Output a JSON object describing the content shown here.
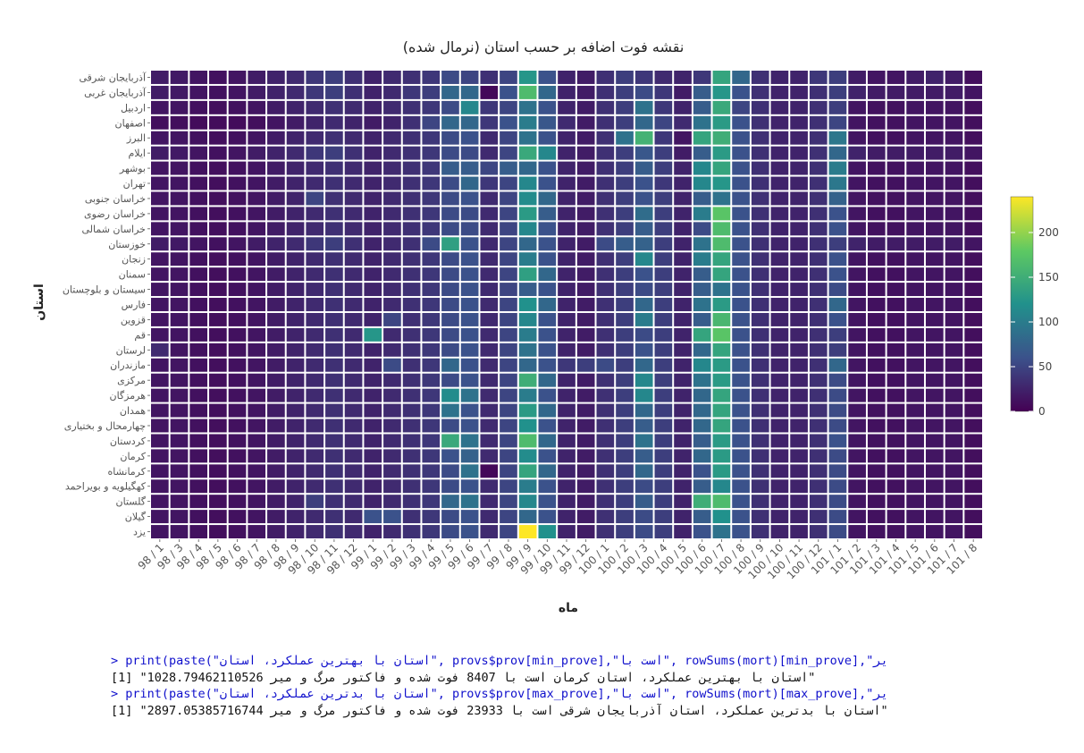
{
  "chart_data": {
    "type": "heatmap",
    "title": "نقشه فوت اضافه بر حسب استان (نرمال شده)",
    "xlabel": "ماه",
    "ylabel": "استان",
    "x": [
      "98 / 1",
      "98 / 3",
      "98 / 4",
      "98 / 5",
      "98 / 6",
      "98 / 7",
      "98 / 8",
      "98 / 9",
      "98 / 10",
      "98 / 11",
      "98 / 12",
      "99 / 1",
      "99 / 2",
      "99 / 3",
      "99 / 4",
      "99 / 5",
      "99 / 6",
      "99 / 7",
      "99 / 8",
      "99 / 9",
      "99 / 10",
      "99 / 11",
      "99 / 12",
      "100 / 1",
      "100 / 2",
      "100 / 3",
      "100 / 4",
      "100 / 5",
      "100 / 6",
      "100 / 7",
      "100 / 8",
      "100 / 9",
      "100 / 10",
      "100 / 11",
      "100 / 12",
      "101 / 1",
      "101 / 2",
      "101 / 3",
      "101 / 4",
      "101 / 5",
      "101 / 6",
      "101 / 7",
      "101 / 8"
    ],
    "y": [
      "آذربایجان شرقی",
      "آذربایجان غربی",
      "اردبیل",
      "اصفهان",
      "البرز",
      "ایلام",
      "بوشهر",
      "تهران",
      "خراسان جنوبی",
      "خراسان رضوی",
      "خراسان شمالی",
      "خوزستان",
      "زنجان",
      "سمنان",
      "سیستان و بلوچستان",
      "فارس",
      "قزوین",
      "قم",
      "لرستان",
      "مازندران",
      "مرکزی",
      "هرمزگان",
      "همدان",
      "چهارمحال و بختیاری",
      "کردستان",
      "کرمان",
      "کرمانشاه",
      "کهگیلویه و بویراحمد",
      "گلستان",
      "گیلان",
      "یزد"
    ],
    "values": [
      [
        20,
        18,
        15,
        12,
        15,
        20,
        25,
        30,
        40,
        45,
        35,
        25,
        30,
        35,
        40,
        55,
        50,
        35,
        50,
        125,
        60,
        25,
        20,
        35,
        45,
        40,
        30,
        25,
        40,
        140,
        80,
        35,
        25,
        25,
        40,
        45,
        20,
        15,
        15,
        20,
        25,
        20,
        10
      ],
      [
        20,
        18,
        15,
        12,
        15,
        20,
        25,
        30,
        40,
        45,
        35,
        25,
        30,
        40,
        45,
        80,
        80,
        5,
        60,
        165,
        80,
        25,
        20,
        35,
        45,
        55,
        40,
        20,
        70,
        125,
        60,
        35,
        25,
        25,
        35,
        45,
        25,
        20,
        20,
        20,
        20,
        20,
        15
      ],
      [
        15,
        15,
        12,
        10,
        12,
        15,
        20,
        25,
        30,
        35,
        30,
        25,
        30,
        35,
        40,
        55,
        110,
        40,
        50,
        90,
        60,
        25,
        20,
        35,
        45,
        90,
        40,
        25,
        70,
        145,
        50,
        35,
        25,
        25,
        35,
        45,
        15,
        12,
        12,
        15,
        15,
        15,
        10
      ],
      [
        10,
        10,
        8,
        8,
        8,
        10,
        15,
        20,
        25,
        30,
        25,
        20,
        25,
        35,
        50,
        80,
        80,
        40,
        60,
        100,
        65,
        30,
        20,
        35,
        45,
        80,
        50,
        30,
        90,
        130,
        60,
        35,
        25,
        25,
        35,
        50,
        15,
        12,
        12,
        15,
        15,
        15,
        10
      ],
      [
        15,
        15,
        12,
        10,
        12,
        15,
        20,
        25,
        30,
        35,
        30,
        25,
        30,
        35,
        40,
        55,
        60,
        30,
        50,
        90,
        60,
        25,
        20,
        35,
        90,
        155,
        40,
        15,
        140,
        150,
        60,
        35,
        25,
        25,
        35,
        95,
        15,
        12,
        12,
        15,
        15,
        15,
        10
      ],
      [
        20,
        18,
        15,
        12,
        15,
        20,
        25,
        30,
        40,
        45,
        35,
        25,
        30,
        35,
        40,
        55,
        55,
        30,
        50,
        145,
        110,
        25,
        20,
        35,
        45,
        65,
        45,
        20,
        70,
        130,
        60,
        35,
        25,
        25,
        35,
        80,
        25,
        20,
        20,
        20,
        20,
        20,
        15
      ],
      [
        15,
        15,
        12,
        10,
        12,
        15,
        20,
        25,
        30,
        35,
        30,
        25,
        30,
        35,
        40,
        70,
        70,
        50,
        70,
        80,
        60,
        25,
        20,
        35,
        45,
        70,
        45,
        25,
        110,
        140,
        60,
        35,
        25,
        25,
        35,
        100,
        15,
        12,
        12,
        15,
        15,
        15,
        10
      ],
      [
        15,
        15,
        12,
        10,
        12,
        15,
        20,
        25,
        30,
        35,
        30,
        25,
        30,
        35,
        40,
        55,
        80,
        40,
        50,
        110,
        60,
        25,
        20,
        35,
        45,
        60,
        40,
        25,
        110,
        125,
        60,
        35,
        25,
        25,
        35,
        95,
        15,
        12,
        12,
        15,
        15,
        15,
        10
      ],
      [
        15,
        15,
        12,
        10,
        12,
        15,
        20,
        25,
        50,
        35,
        30,
        25,
        30,
        35,
        40,
        55,
        60,
        30,
        50,
        115,
        80,
        25,
        20,
        35,
        45,
        60,
        45,
        25,
        70,
        90,
        60,
        35,
        25,
        25,
        35,
        75,
        15,
        12,
        12,
        15,
        15,
        15,
        10
      ],
      [
        15,
        15,
        12,
        10,
        12,
        15,
        20,
        25,
        30,
        35,
        30,
        25,
        30,
        35,
        40,
        55,
        55,
        30,
        50,
        130,
        70,
        25,
        20,
        35,
        45,
        85,
        45,
        25,
        100,
        175,
        60,
        35,
        25,
        25,
        35,
        60,
        15,
        12,
        12,
        15,
        15,
        15,
        10
      ],
      [
        15,
        15,
        12,
        10,
        12,
        15,
        20,
        25,
        30,
        35,
        30,
        25,
        30,
        35,
        40,
        55,
        55,
        30,
        50,
        110,
        60,
        25,
        20,
        35,
        45,
        70,
        45,
        25,
        55,
        165,
        60,
        35,
        25,
        25,
        35,
        60,
        15,
        12,
        12,
        15,
        15,
        15,
        10
      ],
      [
        20,
        18,
        15,
        12,
        15,
        20,
        25,
        30,
        40,
        45,
        35,
        25,
        30,
        35,
        55,
        135,
        60,
        30,
        50,
        80,
        60,
        25,
        20,
        55,
        70,
        75,
        45,
        25,
        90,
        165,
        60,
        35,
        25,
        25,
        35,
        45,
        25,
        20,
        20,
        20,
        20,
        20,
        15
      ],
      [
        15,
        15,
        12,
        10,
        12,
        15,
        20,
        25,
        30,
        35,
        30,
        25,
        30,
        35,
        40,
        55,
        60,
        30,
        50,
        100,
        60,
        25,
        20,
        35,
        45,
        110,
        45,
        25,
        100,
        140,
        60,
        35,
        25,
        25,
        35,
        60,
        15,
        12,
        12,
        15,
        15,
        15,
        10
      ],
      [
        15,
        15,
        12,
        10,
        12,
        15,
        20,
        25,
        30,
        35,
        30,
        25,
        30,
        35,
        40,
        55,
        60,
        30,
        50,
        135,
        80,
        25,
        20,
        35,
        45,
        60,
        45,
        25,
        70,
        140,
        60,
        35,
        25,
        25,
        35,
        60,
        15,
        12,
        12,
        15,
        15,
        15,
        10
      ],
      [
        15,
        15,
        12,
        10,
        12,
        15,
        20,
        25,
        30,
        35,
        30,
        25,
        30,
        35,
        40,
        55,
        60,
        30,
        50,
        70,
        60,
        25,
        20,
        35,
        45,
        55,
        45,
        25,
        70,
        90,
        60,
        35,
        25,
        25,
        35,
        55,
        15,
        12,
        12,
        15,
        15,
        15,
        10
      ],
      [
        15,
        15,
        12,
        10,
        12,
        15,
        20,
        25,
        30,
        35,
        30,
        25,
        30,
        35,
        40,
        55,
        60,
        30,
        50,
        120,
        80,
        25,
        20,
        35,
        45,
        80,
        45,
        25,
        90,
        130,
        60,
        35,
        25,
        25,
        35,
        80,
        15,
        12,
        12,
        15,
        15,
        15,
        10
      ],
      [
        15,
        15,
        12,
        10,
        12,
        15,
        20,
        25,
        30,
        35,
        30,
        25,
        50,
        35,
        40,
        55,
        60,
        30,
        50,
        110,
        60,
        25,
        20,
        35,
        45,
        100,
        45,
        25,
        70,
        160,
        60,
        35,
        25,
        25,
        35,
        60,
        15,
        12,
        12,
        15,
        15,
        15,
        10
      ],
      [
        15,
        15,
        12,
        10,
        12,
        15,
        20,
        25,
        30,
        35,
        30,
        125,
        30,
        35,
        40,
        55,
        60,
        30,
        50,
        100,
        60,
        25,
        20,
        35,
        45,
        55,
        45,
        25,
        140,
        175,
        60,
        35,
        25,
        25,
        35,
        45,
        15,
        12,
        12,
        15,
        15,
        15,
        10
      ],
      [
        30,
        15,
        12,
        10,
        12,
        15,
        20,
        25,
        30,
        35,
        30,
        25,
        30,
        35,
        40,
        55,
        60,
        30,
        50,
        90,
        60,
        25,
        20,
        35,
        45,
        60,
        45,
        25,
        80,
        140,
        60,
        35,
        25,
        25,
        35,
        45,
        15,
        12,
        12,
        15,
        15,
        15,
        10
      ],
      [
        15,
        15,
        12,
        10,
        12,
        15,
        20,
        25,
        30,
        35,
        30,
        25,
        55,
        35,
        40,
        80,
        60,
        30,
        50,
        80,
        60,
        40,
        45,
        55,
        45,
        80,
        45,
        25,
        110,
        130,
        60,
        35,
        25,
        25,
        35,
        80,
        15,
        12,
        12,
        15,
        15,
        15,
        10
      ],
      [
        15,
        15,
        12,
        10,
        12,
        15,
        20,
        25,
        30,
        35,
        30,
        25,
        30,
        35,
        40,
        55,
        60,
        30,
        50,
        150,
        80,
        25,
        20,
        35,
        45,
        110,
        45,
        25,
        90,
        130,
        60,
        35,
        25,
        25,
        35,
        55,
        15,
        12,
        12,
        15,
        15,
        15,
        10
      ],
      [
        15,
        15,
        12,
        10,
        12,
        15,
        20,
        25,
        30,
        35,
        30,
        25,
        30,
        35,
        40,
        115,
        90,
        30,
        50,
        100,
        60,
        25,
        20,
        35,
        45,
        110,
        45,
        25,
        80,
        140,
        60,
        35,
        25,
        25,
        35,
        55,
        15,
        12,
        12,
        15,
        15,
        15,
        10
      ],
      [
        15,
        15,
        12,
        10,
        12,
        15,
        20,
        25,
        30,
        35,
        30,
        25,
        30,
        35,
        40,
        90,
        60,
        30,
        50,
        130,
        80,
        25,
        20,
        35,
        45,
        80,
        45,
        25,
        80,
        140,
        60,
        35,
        25,
        25,
        35,
        55,
        15,
        12,
        12,
        15,
        15,
        15,
        10
      ],
      [
        15,
        15,
        12,
        10,
        12,
        15,
        20,
        25,
        30,
        35,
        30,
        25,
        30,
        35,
        40,
        55,
        60,
        30,
        50,
        120,
        60,
        25,
        20,
        35,
        45,
        70,
        45,
        25,
        80,
        140,
        60,
        35,
        25,
        25,
        35,
        55,
        15,
        12,
        12,
        15,
        15,
        15,
        10
      ],
      [
        15,
        15,
        12,
        10,
        12,
        15,
        20,
        25,
        30,
        35,
        30,
        25,
        30,
        35,
        40,
        145,
        90,
        30,
        50,
        165,
        80,
        25,
        20,
        35,
        45,
        90,
        45,
        25,
        70,
        130,
        60,
        35,
        25,
        25,
        35,
        60,
        15,
        12,
        12,
        15,
        15,
        15,
        10
      ],
      [
        15,
        15,
        12,
        10,
        12,
        15,
        20,
        25,
        30,
        35,
        30,
        25,
        30,
        35,
        40,
        60,
        75,
        30,
        50,
        115,
        60,
        25,
        20,
        35,
        45,
        70,
        45,
        25,
        80,
        130,
        60,
        35,
        25,
        25,
        35,
        55,
        15,
        12,
        12,
        15,
        15,
        15,
        10
      ],
      [
        15,
        15,
        12,
        10,
        12,
        15,
        20,
        25,
        30,
        35,
        30,
        25,
        30,
        35,
        40,
        55,
        90,
        5,
        50,
        140,
        80,
        25,
        20,
        35,
        45,
        80,
        45,
        25,
        60,
        130,
        60,
        35,
        25,
        25,
        35,
        55,
        15,
        12,
        12,
        15,
        15,
        15,
        10
      ],
      [
        15,
        15,
        12,
        10,
        12,
        15,
        20,
        25,
        30,
        35,
        30,
        25,
        30,
        35,
        40,
        55,
        60,
        30,
        50,
        100,
        60,
        25,
        20,
        35,
        45,
        55,
        45,
        25,
        70,
        110,
        60,
        35,
        25,
        25,
        35,
        55,
        15,
        12,
        12,
        15,
        15,
        15,
        10
      ],
      [
        15,
        15,
        12,
        10,
        12,
        15,
        20,
        25,
        45,
        35,
        30,
        25,
        30,
        35,
        40,
        80,
        90,
        30,
        50,
        110,
        60,
        25,
        20,
        35,
        45,
        70,
        45,
        25,
        150,
        165,
        60,
        35,
        25,
        25,
        35,
        55,
        15,
        12,
        12,
        15,
        15,
        15,
        10
      ],
      [
        15,
        15,
        12,
        10,
        12,
        15,
        20,
        25,
        30,
        35,
        30,
        60,
        60,
        35,
        40,
        55,
        60,
        30,
        50,
        80,
        60,
        25,
        20,
        35,
        45,
        55,
        45,
        25,
        70,
        120,
        60,
        35,
        25,
        25,
        35,
        55,
        15,
        12,
        12,
        15,
        15,
        15,
        10
      ],
      [
        15,
        15,
        12,
        10,
        12,
        15,
        20,
        25,
        30,
        35,
        30,
        25,
        30,
        35,
        40,
        55,
        60,
        30,
        50,
        240,
        120,
        25,
        20,
        35,
        45,
        55,
        45,
        25,
        60,
        90,
        60,
        35,
        25,
        25,
        35,
        55,
        15,
        12,
        12,
        15,
        15,
        15,
        10
      ]
    ],
    "colorbar": {
      "min": 0,
      "max": 240,
      "ticks": [
        0,
        50,
        100,
        150,
        200
      ]
    },
    "colorscale": [
      "#440154",
      "#3b528b",
      "#21918c",
      "#5ec962",
      "#fde725"
    ],
    "grid": false
  },
  "console": {
    "line1": "> print(paste(\"استان با بهترین عملکرد، استان\", provs$prov[min_prove],\"است با\", rowSums(mort)[min_prove],\"یر",
    "line2": "[1] \"استان با بهترین عملکرد، استان کرمان است با 8407 فوت شده و فاکتور مرگ و میر 1028.79462110526\"",
    "line3": "> print(paste(\"استان با بدترین عملکرد، استان\", provs$prov[max_prove],\"است با\", rowSums(mort)[max_prove],\"یر",
    "line4": "[1] \"استان با بدترین عملکرد، استان آذربایجان شرقی است با 23933 فوت شده و فاکتور مرگ و میر 2897.05385716744\""
  }
}
